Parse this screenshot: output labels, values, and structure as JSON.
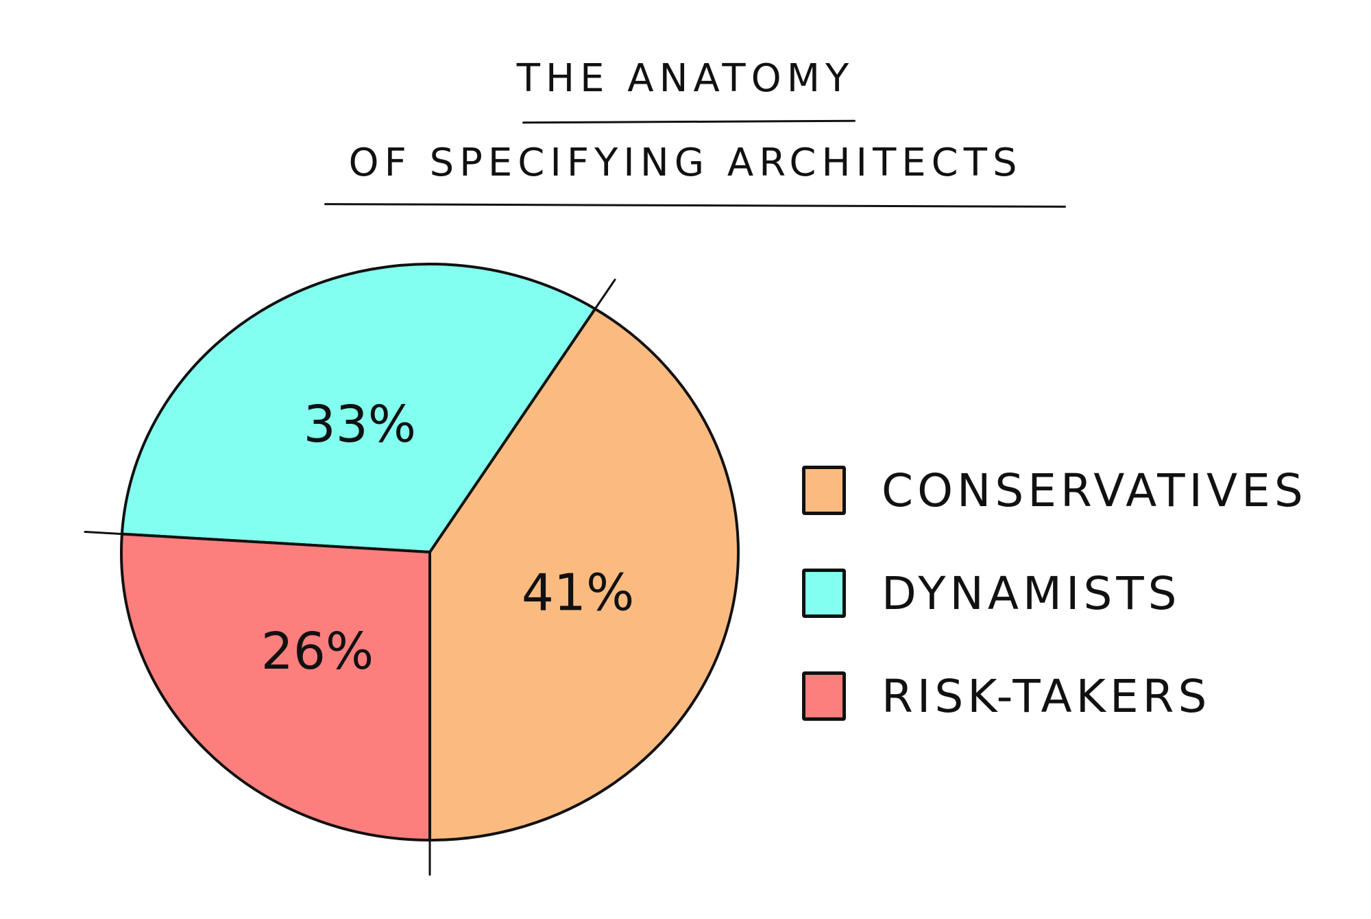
{
  "chart_data": {
    "type": "pie",
    "title_line1": "The Anatomy",
    "title_line2": "Of Specifying Architects",
    "slices": [
      {
        "name": "Conservatives",
        "value": 41,
        "label": "41%",
        "color": "#fbbb80"
      },
      {
        "name": "Dynamists",
        "value": 33,
        "label": "33%",
        "color": "#83fff0"
      },
      {
        "name": "Risk-takers",
        "value": 26,
        "label": "26%",
        "color": "#fc7f7d"
      }
    ],
    "legend_placement": "right"
  }
}
